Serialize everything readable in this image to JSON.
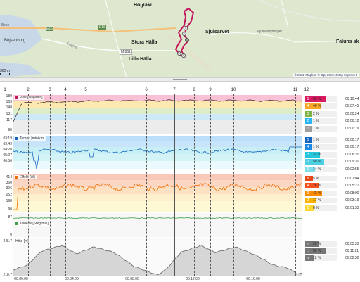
{
  "map": {
    "places": [
      "Högtäkt",
      "Stora Hälla",
      "Sjulsarvet",
      "Lilla Hälla",
      "Bojsenburg",
      "Lugnet",
      "Mjölnarbyberget",
      "Faluns sk",
      "Beck"
    ],
    "roads": [
      "E16",
      "E16",
      "M 851"
    ],
    "route_markers": [
      "1",
      "2",
      "3",
      "4",
      "5",
      "6",
      "7",
      "8",
      "9",
      "10",
      "11",
      "12"
    ],
    "attribution": "© 2022 Mapbox © OpenStreetMap Improve t",
    "scale_label": "300 m"
  },
  "laps": {
    "markers": [
      "1",
      "2",
      "3",
      "4",
      "5",
      "6",
      "7",
      "8",
      "9",
      "10",
      "11",
      "12"
    ]
  },
  "panels": {
    "pulse": {
      "title": "Puls [slag/min]",
      "ticks": [
        "189",
        "163",
        "148",
        "131",
        "117",
        "90"
      ]
    },
    "pace": {
      "title": "Tempo [min/km]",
      "ticks": [
        "03:19",
        "03:49",
        "04:20",
        "05:27",
        "06:56"
      ]
    },
    "power": {
      "title": "Effekt [W]",
      "ticks": [
        "414",
        "360",
        "306",
        "252",
        "198",
        "90"
      ]
    },
    "cadence": {
      "title": "Kadens [Steg/min]",
      "ticks": [
        "87",
        "0"
      ]
    },
    "altitude": {
      "title": "Höjd [m]",
      "ticks": [
        "245.7",
        "218.7"
      ]
    }
  },
  "legends": {
    "pulse": [
      {
        "zone": "5",
        "pct": "55 %",
        "time": "00:10:44",
        "color": "#d81b60",
        "level": 0.55
      },
      {
        "zone": "4",
        "pct": "40 %",
        "time": "00:07:45",
        "color": "#f9a825",
        "level": 0.4
      },
      {
        "zone": "3",
        "pct": "2 %",
        "time": "00:00:24",
        "color": "#7cb342",
        "level": 0.02
      },
      {
        "zone": "2",
        "pct": "1 %",
        "time": "00:00:12",
        "color": "#29b6f6",
        "level": 0.01
      },
      {
        "zone": "1",
        "pct": "1 %",
        "time": "00:00:19",
        "color": "#9e9e9e",
        "level": 0.01
      }
    ],
    "pace": [
      {
        "zone": "5",
        "pct": "1 %",
        "time": "00:00:17",
        "color": "#1565c0",
        "level": 0.01
      },
      {
        "zone": "4",
        "pct": "1 %",
        "time": "00:00:17",
        "color": "#1e88e5",
        "level": 0.01
      },
      {
        "zone": "3",
        "pct": "33 %",
        "time": "00:06:20",
        "color": "#26c6da",
        "level": 0.33
      },
      {
        "zone": "2",
        "pct": "50 %",
        "time": "00:09:30",
        "color": "#4dd0e1",
        "level": 0.5
      },
      {
        "zone": "1",
        "pct": "14 %",
        "time": "00:02:55",
        "color": "#80deea",
        "level": 0.14
      }
    ],
    "power": [
      {
        "zone": "5",
        "pct": "5 %",
        "time": "00:01:04",
        "color": "#e64a19",
        "level": 0.05
      },
      {
        "zone": "4",
        "pct": "28 %",
        "time": "00:05:21",
        "color": "#f4511e",
        "level": 0.28
      },
      {
        "zone": "3",
        "pct": "42 %",
        "time": "00:08:00",
        "color": "#fb8c00",
        "level": 0.42
      },
      {
        "zone": "2",
        "pct": "17 %",
        "time": "00:03:19",
        "color": "#ffb300",
        "level": 0.17
      },
      {
        "zone": "1",
        "pct": "8 %",
        "time": "00:01:33",
        "color": "#fdd835",
        "level": 0.08
      }
    ],
    "altitude": [
      {
        "zone": "up",
        "pct": "29 %",
        "time": "00:05:33",
        "color": "#777777",
        "level": 0.29
      },
      {
        "zone": "flat",
        "pct": "59 %",
        "time": "00:11:21",
        "color": "#777777",
        "level": 0.59
      },
      {
        "zone": "down",
        "pct": "12 %",
        "time": "00:02:30",
        "color": "#777777",
        "level": 0.12
      }
    ]
  },
  "xaxis": {
    "ticks": [
      "00:00:00",
      "00:04:00",
      "00:08:00",
      "00:12:00",
      "00:16:00"
    ]
  },
  "colors": {
    "route": "#c2185b",
    "pulse_line": "#4e342e",
    "pace_line": "#1565c0",
    "power_line": "#ef6c00",
    "cadence_line": "#43a047",
    "altitude_fill": "#d6d6d6",
    "altitude_line": "#616161"
  }
}
